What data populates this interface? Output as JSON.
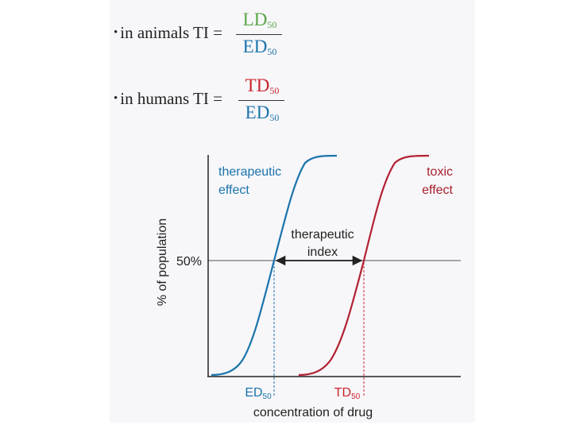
{
  "formulas": [
    {
      "bullet": "•",
      "lhs": "in animals TI =",
      "num_main": "LD",
      "num_sub": "50",
      "num_color": "#5aa646",
      "den_main": "ED",
      "den_sub": "50",
      "den_color": "#1a74ab"
    },
    {
      "bullet": "•",
      "lhs": "in humans TI =",
      "num_main": "TD",
      "num_sub": "50",
      "num_color": "#c8252c",
      "den_main": "ED",
      "den_sub": "50",
      "den_color": "#1a74ab"
    }
  ],
  "diagram": {
    "ylabel": "% of population",
    "xlabel": "concentration of drug",
    "fifty_label": "50%",
    "therapeutic_effect": {
      "line1": "therapeutic",
      "line2": "effect",
      "color": "#1a74ab"
    },
    "toxic_effect": {
      "line1": "toxic",
      "line2": "effect",
      "color": "#a8202c"
    },
    "index_label": {
      "line1": "therapeutic",
      "line2": "index"
    },
    "ed50": {
      "main": "ED",
      "sub": "50"
    },
    "td50": {
      "main": "TD",
      "sub": "50"
    }
  },
  "colors": {
    "therapeutic": "#1a74ab",
    "toxic": "#b22233",
    "axis": "#222222",
    "fifty_line": "#8a8a8a"
  }
}
